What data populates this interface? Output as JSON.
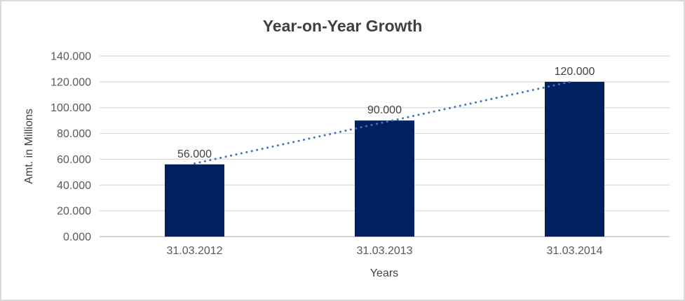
{
  "chart": {
    "frame_border_color": "#d9d9d9",
    "background_color": "#ffffff"
  },
  "chart_data": {
    "type": "bar",
    "title": "Year-on-Year Growth",
    "xlabel": "Years",
    "ylabel": "Amt. in Millions",
    "categories": [
      "31.03.2012",
      "31.03.2013",
      "31.03.2014"
    ],
    "values": [
      56,
      90,
      120
    ],
    "data_labels": [
      "56.000",
      "90.000",
      "120.000"
    ],
    "ylim": [
      0,
      140
    ],
    "y_tick_step": 20,
    "y_tick_labels": [
      "0.000",
      "20.000",
      "40.000",
      "60.000",
      "80.000",
      "100.000",
      "120.000",
      "140.000"
    ],
    "grid": true,
    "legend": "none",
    "bar_color": "#002060",
    "title_color": "#404040",
    "axis_text_color": "#595959",
    "gridline_color": "#d9d9d9",
    "axis_line_color": "#c6c6c6",
    "trendline": {
      "type": "linear",
      "style": "dotted",
      "color": "#4472C4"
    }
  }
}
